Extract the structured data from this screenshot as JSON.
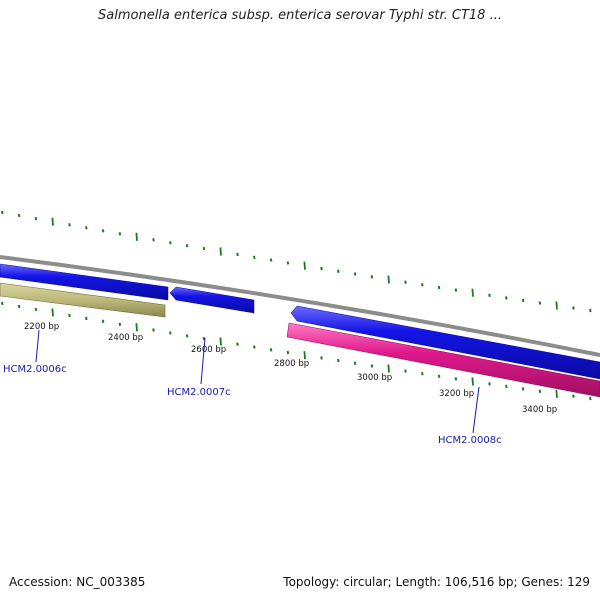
{
  "header": {
    "title": "Salmonella enterica subsp. enterica serovar Typhi str. CT18 ..."
  },
  "footer": {
    "accession_label": "Accession:",
    "accession": "NC_003385",
    "summary": "Topology: circular; Length: 106,516 bp; Genes: 129"
  },
  "colors": {
    "backbone": "#8c8c8c",
    "forward_gene": "#1414e6",
    "reverse_gene": "#e0198c",
    "other_gene": "#bdb97a",
    "tick": "#1e7a1e",
    "gene_label": "#1a1aa8"
  },
  "scale_labels": [
    {
      "bp": 2200,
      "text": "2200 bp"
    },
    {
      "bp": 2400,
      "text": "2400 bp"
    },
    {
      "bp": 2600,
      "text": "2600 bp"
    },
    {
      "bp": 2800,
      "text": "2800 bp"
    },
    {
      "bp": 3000,
      "text": "3000 bp"
    },
    {
      "bp": 3200,
      "text": "3200 bp"
    },
    {
      "bp": 3400,
      "text": "3400 bp"
    }
  ],
  "gene_labels": [
    {
      "name": "HCM2.0006c"
    },
    {
      "name": "HCM2.0007c"
    },
    {
      "name": "HCM2.0008c"
    }
  ]
}
